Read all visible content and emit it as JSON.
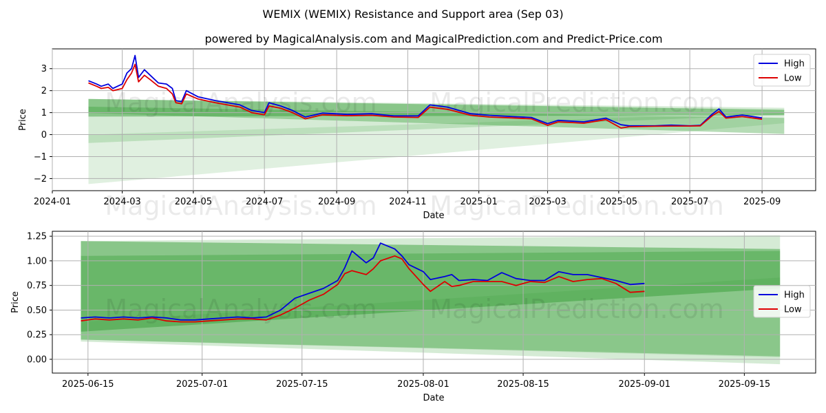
{
  "title": "WEMIX (WEMIX) Resistance and Support area (Sep 03)",
  "subtitle": "powered by MagicalAnalysis.com and MagicalPrediction.com and Predict-Price.com",
  "watermarks": [
    "MagicalAnalysis.com",
    "MagicalPrediction.com"
  ],
  "colors": {
    "high": "#0000dd",
    "low": "#dd0000",
    "band": "#2e9a2e"
  },
  "chart_data": [
    {
      "type": "line",
      "xlabel": "Date",
      "ylabel": "Price",
      "xlim": [
        "2024-01-01",
        "2025-10-17"
      ],
      "ylim": [
        -2.55,
        3.9
      ],
      "x_ticks": [
        "2024-01",
        "2024-03",
        "2024-05",
        "2024-07",
        "2024-09",
        "2024-11",
        "2025-01",
        "2025-03",
        "2025-05",
        "2025-07",
        "2025-09"
      ],
      "y_ticks": [
        3,
        2,
        1,
        0,
        -1,
        -2
      ],
      "y_tick_labels": [
        "3",
        "2",
        "1",
        "0",
        "−1",
        "−2"
      ],
      "legend": {
        "position": "top-right",
        "entries": [
          "High",
          "Low"
        ]
      },
      "bands": [
        {
          "start": "2024-02-01",
          "end": "2025-09-20",
          "upper": [
            1.62,
            1.13
          ],
          "lower": [
            0.82,
            0.88
          ]
        },
        {
          "start": "2024-02-01",
          "end": "2025-09-20",
          "upper": [
            1.27,
            0.76
          ],
          "lower": [
            0.98,
            0.03
          ]
        },
        {
          "start": "2024-02-01",
          "end": "2025-09-20",
          "upper": [
            1.62,
            1.22
          ],
          "lower": [
            -0.38,
            0.92
          ]
        },
        {
          "start": "2024-02-01",
          "end": "2025-09-20",
          "upper": [
            0.0,
            1.0
          ],
          "lower": [
            -2.25,
            0.52
          ]
        }
      ],
      "series": [
        {
          "name": "High",
          "x": [
            "2024-02-01",
            "2024-02-08",
            "2024-02-12",
            "2024-02-18",
            "2024-02-22",
            "2024-03-01",
            "2024-03-05",
            "2024-03-09",
            "2024-03-12",
            "2024-03-15",
            "2024-03-20",
            "2024-03-25",
            "2024-04-01",
            "2024-04-08",
            "2024-04-13",
            "2024-04-16",
            "2024-04-21",
            "2024-04-25",
            "2024-05-05",
            "2024-05-20",
            "2024-06-10",
            "2024-06-20",
            "2024-07-01",
            "2024-07-05",
            "2024-07-15",
            "2024-07-25",
            "2024-08-05",
            "2024-08-20",
            "2024-09-10",
            "2024-10-01",
            "2024-10-20",
            "2024-11-10",
            "2024-11-20",
            "2024-12-05",
            "2024-12-25",
            "2025-01-10",
            "2025-01-30",
            "2025-02-15",
            "2025-03-01",
            "2025-03-10",
            "2025-04-01",
            "2025-04-20",
            "2025-05-03",
            "2025-05-10",
            "2025-06-01",
            "2025-06-15",
            "2025-07-01",
            "2025-07-10",
            "2025-07-20",
            "2025-07-26",
            "2025-08-01",
            "2025-08-15",
            "2025-09-01"
          ],
          "values": [
            2.45,
            2.3,
            2.2,
            2.3,
            2.1,
            2.3,
            2.8,
            3.0,
            3.6,
            2.6,
            2.95,
            2.7,
            2.35,
            2.3,
            2.1,
            1.55,
            1.5,
            2.0,
            1.72,
            1.55,
            1.35,
            1.1,
            1.0,
            1.45,
            1.3,
            1.1,
            0.8,
            0.98,
            0.92,
            0.95,
            0.85,
            0.85,
            1.35,
            1.25,
            0.95,
            0.88,
            0.82,
            0.78,
            0.5,
            0.65,
            0.58,
            0.75,
            0.45,
            0.4,
            0.4,
            0.43,
            0.4,
            0.42,
            0.92,
            1.17,
            0.8,
            0.89,
            0.76
          ]
        },
        {
          "name": "Low",
          "x": [
            "2024-02-01",
            "2024-02-08",
            "2024-02-12",
            "2024-02-18",
            "2024-02-22",
            "2024-03-01",
            "2024-03-05",
            "2024-03-09",
            "2024-03-12",
            "2024-03-15",
            "2024-03-20",
            "2024-03-25",
            "2024-04-01",
            "2024-04-08",
            "2024-04-13",
            "2024-04-16",
            "2024-04-21",
            "2024-04-25",
            "2024-05-05",
            "2024-05-20",
            "2024-06-10",
            "2024-06-20",
            "2024-07-01",
            "2024-07-05",
            "2024-07-15",
            "2024-07-25",
            "2024-08-05",
            "2024-08-20",
            "2024-09-10",
            "2024-10-01",
            "2024-10-20",
            "2024-11-10",
            "2024-11-20",
            "2024-12-05",
            "2024-12-25",
            "2025-01-10",
            "2025-01-30",
            "2025-02-15",
            "2025-03-01",
            "2025-03-10",
            "2025-04-01",
            "2025-04-20",
            "2025-05-03",
            "2025-05-10",
            "2025-06-01",
            "2025-06-15",
            "2025-07-01",
            "2025-07-10",
            "2025-07-20",
            "2025-07-26",
            "2025-08-01",
            "2025-08-15",
            "2025-09-01"
          ],
          "values": [
            2.35,
            2.2,
            2.1,
            2.15,
            2.0,
            2.1,
            2.5,
            2.8,
            3.2,
            2.4,
            2.7,
            2.5,
            2.2,
            2.1,
            1.85,
            1.45,
            1.4,
            1.85,
            1.62,
            1.45,
            1.25,
            1.0,
            0.9,
            1.3,
            1.2,
            1.0,
            0.72,
            0.9,
            0.86,
            0.88,
            0.8,
            0.78,
            1.25,
            1.15,
            0.88,
            0.8,
            0.76,
            0.72,
            0.42,
            0.58,
            0.52,
            0.68,
            0.3,
            0.36,
            0.38,
            0.39,
            0.39,
            0.4,
            0.85,
            1.05,
            0.75,
            0.82,
            0.7
          ]
        }
      ]
    },
    {
      "type": "line",
      "xlabel": "Date",
      "ylabel": "Price",
      "xlim": [
        "2025-06-10",
        "2025-09-25"
      ],
      "ylim": [
        -0.14,
        1.3
      ],
      "x_ticks": [
        "2025-06-15",
        "2025-07-01",
        "2025-07-15",
        "2025-08-01",
        "2025-08-15",
        "2025-09-01",
        "2025-09-15"
      ],
      "y_ticks": [
        1.25,
        1.0,
        0.75,
        0.5,
        0.25,
        0.0
      ],
      "y_tick_labels": [
        "1.25",
        "1.00",
        "0.75",
        "0.50",
        "0.25",
        "0.00"
      ],
      "legend": {
        "position": "center-right",
        "entries": [
          "High",
          "Low"
        ]
      },
      "bands": [
        {
          "start": "2025-06-14",
          "end": "2025-09-20",
          "upper": [
            1.2,
            1.12
          ],
          "lower": [
            0.28,
            0.72
          ]
        },
        {
          "start": "2025-06-14",
          "end": "2025-09-20",
          "upper": [
            1.05,
            1.1
          ],
          "lower": [
            0.2,
            0.03
          ]
        },
        {
          "start": "2025-06-14",
          "end": "2025-09-20",
          "upper": [
            1.2,
            1.26
          ],
          "lower": [
            0.18,
            -0.05
          ]
        },
        {
          "start": "2025-06-14",
          "end": "2025-09-20",
          "upper": [
            0.38,
            0.83
          ],
          "lower": [
            0.2,
            0.02
          ]
        }
      ],
      "series": [
        {
          "name": "High",
          "x": [
            "2025-06-14",
            "2025-06-16",
            "2025-06-18",
            "2025-06-20",
            "2025-06-22",
            "2025-06-24",
            "2025-06-26",
            "2025-06-28",
            "2025-06-30",
            "2025-07-02",
            "2025-07-04",
            "2025-07-06",
            "2025-07-08",
            "2025-07-10",
            "2025-07-12",
            "2025-07-14",
            "2025-07-16",
            "2025-07-18",
            "2025-07-20",
            "2025-07-21",
            "2025-07-22",
            "2025-07-24",
            "2025-07-25",
            "2025-07-26",
            "2025-07-28",
            "2025-07-29",
            "2025-07-30",
            "2025-08-01",
            "2025-08-02",
            "2025-08-04",
            "2025-08-05",
            "2025-08-06",
            "2025-08-08",
            "2025-08-10",
            "2025-08-12",
            "2025-08-14",
            "2025-08-16",
            "2025-08-18",
            "2025-08-20",
            "2025-08-22",
            "2025-08-24",
            "2025-08-26",
            "2025-08-28",
            "2025-08-30",
            "2025-09-01"
          ],
          "values": [
            0.42,
            0.43,
            0.42,
            0.43,
            0.42,
            0.43,
            0.42,
            0.4,
            0.4,
            0.41,
            0.42,
            0.43,
            0.42,
            0.43,
            0.5,
            0.62,
            0.67,
            0.72,
            0.8,
            0.93,
            1.1,
            0.98,
            1.03,
            1.18,
            1.12,
            1.05,
            0.96,
            0.89,
            0.81,
            0.84,
            0.86,
            0.8,
            0.81,
            0.8,
            0.88,
            0.82,
            0.8,
            0.8,
            0.89,
            0.86,
            0.86,
            0.83,
            0.8,
            0.76,
            0.77
          ]
        },
        {
          "name": "Low",
          "x": [
            "2025-06-14",
            "2025-06-16",
            "2025-06-18",
            "2025-06-20",
            "2025-06-22",
            "2025-06-24",
            "2025-06-26",
            "2025-06-28",
            "2025-06-30",
            "2025-07-02",
            "2025-07-04",
            "2025-07-06",
            "2025-07-08",
            "2025-07-10",
            "2025-07-12",
            "2025-07-14",
            "2025-07-16",
            "2025-07-18",
            "2025-07-20",
            "2025-07-21",
            "2025-07-22",
            "2025-07-24",
            "2025-07-25",
            "2025-07-26",
            "2025-07-28",
            "2025-07-29",
            "2025-07-30",
            "2025-08-01",
            "2025-08-02",
            "2025-08-04",
            "2025-08-05",
            "2025-08-06",
            "2025-08-08",
            "2025-08-10",
            "2025-08-12",
            "2025-08-14",
            "2025-08-16",
            "2025-08-18",
            "2025-08-20",
            "2025-08-22",
            "2025-08-24",
            "2025-08-26",
            "2025-08-28",
            "2025-08-30",
            "2025-09-01"
          ],
          "values": [
            0.39,
            0.41,
            0.4,
            0.41,
            0.4,
            0.42,
            0.39,
            0.38,
            0.38,
            0.39,
            0.4,
            0.41,
            0.41,
            0.4,
            0.45,
            0.52,
            0.6,
            0.66,
            0.76,
            0.87,
            0.9,
            0.86,
            0.92,
            1.0,
            1.05,
            1.02,
            0.92,
            0.76,
            0.69,
            0.79,
            0.74,
            0.75,
            0.79,
            0.79,
            0.79,
            0.75,
            0.79,
            0.78,
            0.84,
            0.79,
            0.81,
            0.82,
            0.77,
            0.68,
            0.69
          ]
        }
      ]
    }
  ]
}
